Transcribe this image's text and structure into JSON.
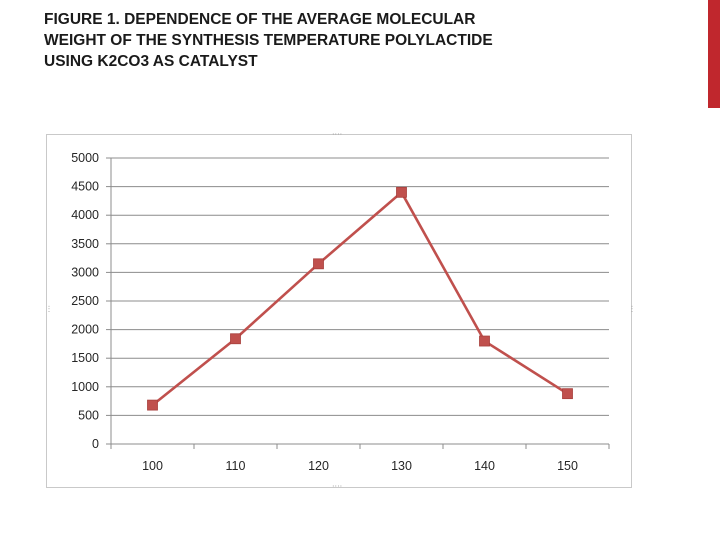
{
  "slide": {
    "title": "FIGURE 1. DEPENDENCE OF THE AVERAGE MOLECULAR WEIGHT OF THE SYNTHESIS TEMPERATURE POLYLACTIDE USING K2CO3 AS CATALYST",
    "accent_color": "#c0272d"
  },
  "chart_data": {
    "type": "line",
    "title": "",
    "xlabel": "",
    "ylabel": "",
    "categories": [
      "100",
      "110",
      "120",
      "130",
      "140",
      "150"
    ],
    "series": [
      {
        "values": [
          680,
          1840,
          3150,
          4400,
          1800,
          880
        ],
        "color": "#c0504d",
        "marker": "square"
      }
    ],
    "ylim": [
      0,
      5000
    ],
    "yticks": [
      0,
      500,
      1000,
      1500,
      2000,
      2500,
      3000,
      3500,
      4000,
      4500,
      5000
    ],
    "grid": true,
    "legend": "none"
  }
}
